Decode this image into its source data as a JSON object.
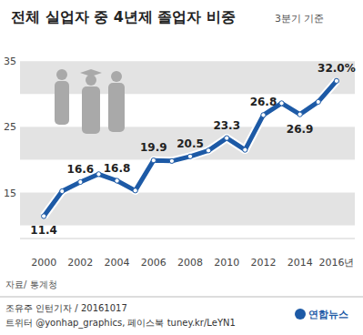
{
  "chart_data": {
    "type": "line",
    "title": "전체 실업자 중 4년제 졸업자 비중",
    "subtitle": "3분기 기준",
    "x": [
      2000,
      2001,
      2002,
      2003,
      2004,
      2005,
      2006,
      2007,
      2008,
      2009,
      2010,
      2011,
      2012,
      2013,
      2014,
      2015,
      2016
    ],
    "values": [
      11.4,
      15.2,
      16.6,
      17.8,
      16.8,
      15.3,
      19.9,
      19.8,
      20.5,
      21.4,
      23.3,
      21.5,
      26.8,
      28.6,
      26.9,
      28.8,
      32.0
    ],
    "value_labels": [
      "11.4",
      null,
      "16.6",
      null,
      "16.8",
      null,
      "19.9",
      null,
      "20.5",
      null,
      "23.3",
      null,
      "26.8",
      null,
      "26.9",
      null,
      "32.0%"
    ],
    "data_labels": true,
    "color": "#1d5aa6",
    "marker": "circle",
    "grid": true,
    "xlim": [
      1998.7,
      2017
    ],
    "xticks": [
      2000,
      2002,
      2004,
      2006,
      2008,
      2010,
      2012,
      2014,
      {
        "value": 2016,
        "label": "2016년"
      }
    ],
    "ylim": [
      8,
      36
    ],
    "yticks": [
      15,
      25,
      35
    ],
    "source": "자료/ 통계청",
    "credit": "조유주 인턴기자 / 20161017",
    "social": "트위터 @yonhap_graphics, 페이스북 tuney.kr/LeYN1",
    "logo": "연합뉴스"
  }
}
